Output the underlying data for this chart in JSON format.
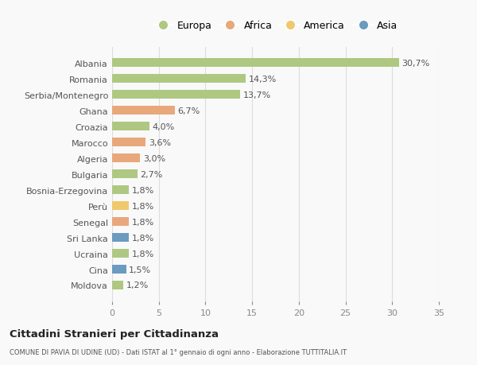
{
  "countries": [
    "Albania",
    "Romania",
    "Serbia/Montenegro",
    "Ghana",
    "Croazia",
    "Marocco",
    "Algeria",
    "Bulgaria",
    "Bosnia-Erzegovina",
    "Perù",
    "Senegal",
    "Sri Lanka",
    "Ucraina",
    "Cina",
    "Moldova"
  ],
  "values": [
    30.7,
    14.3,
    13.7,
    6.7,
    4.0,
    3.6,
    3.0,
    2.7,
    1.8,
    1.8,
    1.8,
    1.8,
    1.8,
    1.5,
    1.2
  ],
  "labels": [
    "30,7%",
    "14,3%",
    "13,7%",
    "6,7%",
    "4,0%",
    "3,6%",
    "3,0%",
    "2,7%",
    "1,8%",
    "1,8%",
    "1,8%",
    "1,8%",
    "1,8%",
    "1,5%",
    "1,2%"
  ],
  "continents": [
    "Europa",
    "Europa",
    "Europa",
    "Africa",
    "Europa",
    "Africa",
    "Africa",
    "Europa",
    "Europa",
    "America",
    "Africa",
    "Asia",
    "Europa",
    "Asia",
    "Europa"
  ],
  "continent_colors": {
    "Europa": "#aec882",
    "Africa": "#e8a87c",
    "America": "#f0c96e",
    "Asia": "#6b9bbf"
  },
  "legend_order": [
    "Europa",
    "Africa",
    "America",
    "Asia"
  ],
  "xlim": [
    0,
    35
  ],
  "xticks": [
    0,
    5,
    10,
    15,
    20,
    25,
    30,
    35
  ],
  "title": "Cittadini Stranieri per Cittadinanza",
  "subtitle": "COMUNE DI PAVIA DI UDINE (UD) - Dati ISTAT al 1° gennaio di ogni anno - Elaborazione TUTTITALIA.IT",
  "bg_color": "#f9f9f9",
  "grid_color": "#dddddd",
  "bar_height": 0.55,
  "label_fontsize": 8,
  "tick_fontsize": 8
}
